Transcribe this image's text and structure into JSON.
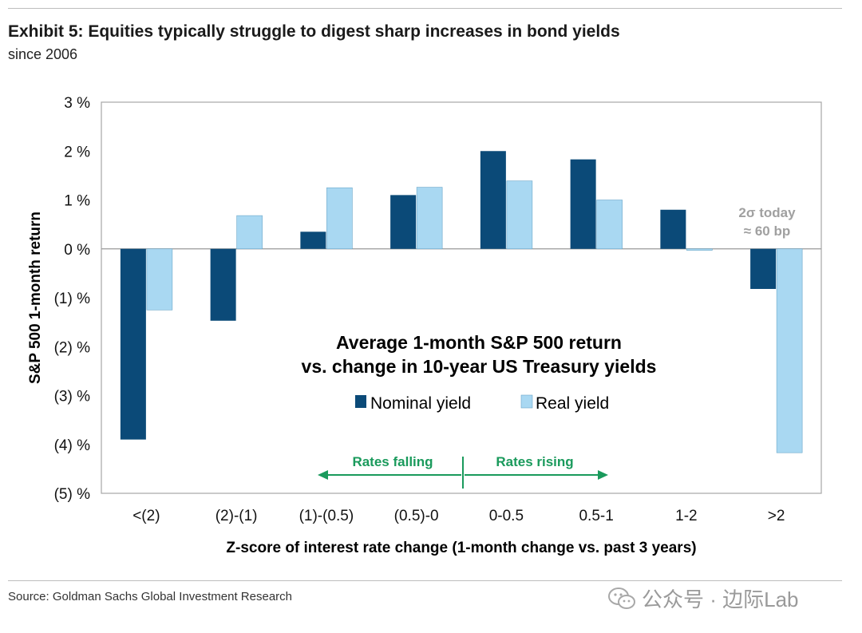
{
  "header": {
    "title": "Exhibit 5: Equities typically struggle to digest sharp increases in bond yields",
    "subtitle": "since 2006"
  },
  "footer": {
    "source": "Source: Goldman Sachs Global Investment Research",
    "watermark": "公众号 · 边际Lab"
  },
  "colors": {
    "nominal": "#0b4a78",
    "real": "#a9d8f2",
    "annotation_green": "#1a9a5c",
    "annotation_gray": "#a0a0a0"
  },
  "chart_data": {
    "type": "bar",
    "title": "Average 1-month S&P 500 return",
    "subtitle": "vs. change in 10-year US Treasury yields",
    "xlabel": "Z-score of interest rate change (1-month change vs. past 3 years)",
    "ylabel": "S&P 500 1-month return",
    "ylim": [
      -5,
      3
    ],
    "yticks": [
      3,
      2,
      1,
      0,
      -1,
      -2,
      -3,
      -4,
      -5
    ],
    "ytick_labels": [
      "3 %",
      "2 %",
      "1 %",
      "0 %",
      "(1) %",
      "(2) %",
      "(3) %",
      "(4) %",
      "(5) %"
    ],
    "categories": [
      "<(2)",
      "(2)-(1)",
      "(1)-(0.5)",
      "(0.5)-0",
      "0-0.5",
      "0.5-1",
      "1-2",
      ">2"
    ],
    "series": [
      {
        "name": "Nominal yield",
        "values": [
          -3.9,
          -1.47,
          0.35,
          1.1,
          2.0,
          1.83,
          0.8,
          -0.82
        ]
      },
      {
        "name": "Real yield",
        "values": [
          -1.25,
          0.68,
          1.25,
          1.26,
          1.39,
          1.0,
          -0.03,
          -4.17
        ]
      }
    ],
    "legend_position": "center",
    "grid": false,
    "annotations": {
      "rates_falling": "Rates falling",
      "rates_rising": "Rates rising",
      "today_line1": "2σ today",
      "today_line2": "≈ 60 bp"
    }
  }
}
